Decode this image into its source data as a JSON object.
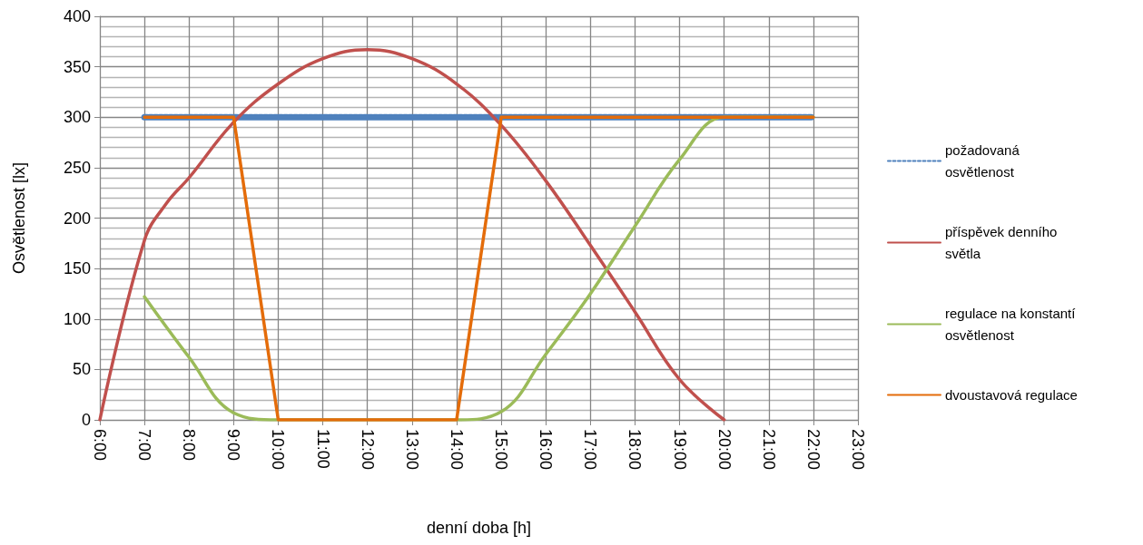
{
  "chart_data": {
    "type": "line",
    "xlabel": "denní doba [h]",
    "ylabel": "Osvětlenost [lx]",
    "xlim": [
      6,
      23
    ],
    "xticks": [
      {
        "value": 6,
        "label": "6:00"
      },
      {
        "value": 7,
        "label": "7:00"
      },
      {
        "value": 8,
        "label": "8:00"
      },
      {
        "value": 9,
        "label": "9:00"
      },
      {
        "value": 10,
        "label": "10:00"
      },
      {
        "value": 11,
        "label": "11:00"
      },
      {
        "value": 12,
        "label": "12:00"
      },
      {
        "value": 13,
        "label": "13:00"
      },
      {
        "value": 14,
        "label": "14:00"
      },
      {
        "value": 15,
        "label": "15:00"
      },
      {
        "value": 16,
        "label": "16:00"
      },
      {
        "value": 17,
        "label": "17:00"
      },
      {
        "value": 18,
        "label": "18:00"
      },
      {
        "value": 19,
        "label": "19:00"
      },
      {
        "value": 20,
        "label": "20:00"
      },
      {
        "value": 21,
        "label": "21:00"
      },
      {
        "value": 22,
        "label": "22:00"
      },
      {
        "value": 23,
        "label": "23:00"
      }
    ],
    "ylim": [
      0,
      400
    ],
    "yticks": [
      0,
      50,
      100,
      150,
      200,
      250,
      300,
      350,
      400
    ],
    "grid": true,
    "legend": "right",
    "marker": "none",
    "series": [
      {
        "name": "požadovaná osvětlenost",
        "color": "#4f81bd",
        "line_style": "dashed",
        "x": [
          7,
          8,
          9,
          10,
          11,
          12,
          13,
          14,
          15,
          16,
          17,
          18,
          19,
          20,
          21,
          22
        ],
        "values": [
          300,
          300,
          300,
          300,
          300,
          300,
          300,
          300,
          300,
          300,
          300,
          300,
          300,
          300,
          300,
          300
        ]
      },
      {
        "name": "příspěvek denního světla",
        "color": "#c0504d",
        "line_style": "solid",
        "x": [
          6,
          7,
          7.5,
          8,
          9,
          10,
          11,
          12,
          13,
          14,
          15,
          16,
          17,
          18,
          19,
          20
        ],
        "values": [
          0,
          178,
          215,
          240,
          295,
          333,
          358,
          367,
          358,
          333,
          292,
          237,
          173,
          107,
          40,
          0
        ]
      },
      {
        "name": "regulace na konstantí osvětlenost",
        "color": "#9bbb59",
        "line_style": "solid",
        "x": [
          7,
          8,
          9,
          10,
          11,
          12,
          13,
          14,
          15,
          16,
          17,
          18,
          19,
          20,
          21,
          22
        ],
        "values": [
          122,
          62,
          7,
          0,
          0,
          0,
          0,
          0,
          8,
          65,
          125,
          192,
          258,
          300,
          300,
          300
        ]
      },
      {
        "name": "dvoustavová regulace",
        "color": "#e46c0a",
        "line_style": "solid",
        "x": [
          7,
          8,
          9,
          10,
          11,
          12,
          13,
          14,
          15,
          16,
          17,
          18,
          19,
          20,
          21,
          22
        ],
        "values": [
          300,
          300,
          300,
          0,
          0,
          0,
          0,
          0,
          300,
          300,
          300,
          300,
          300,
          300,
          300,
          300
        ]
      }
    ]
  }
}
